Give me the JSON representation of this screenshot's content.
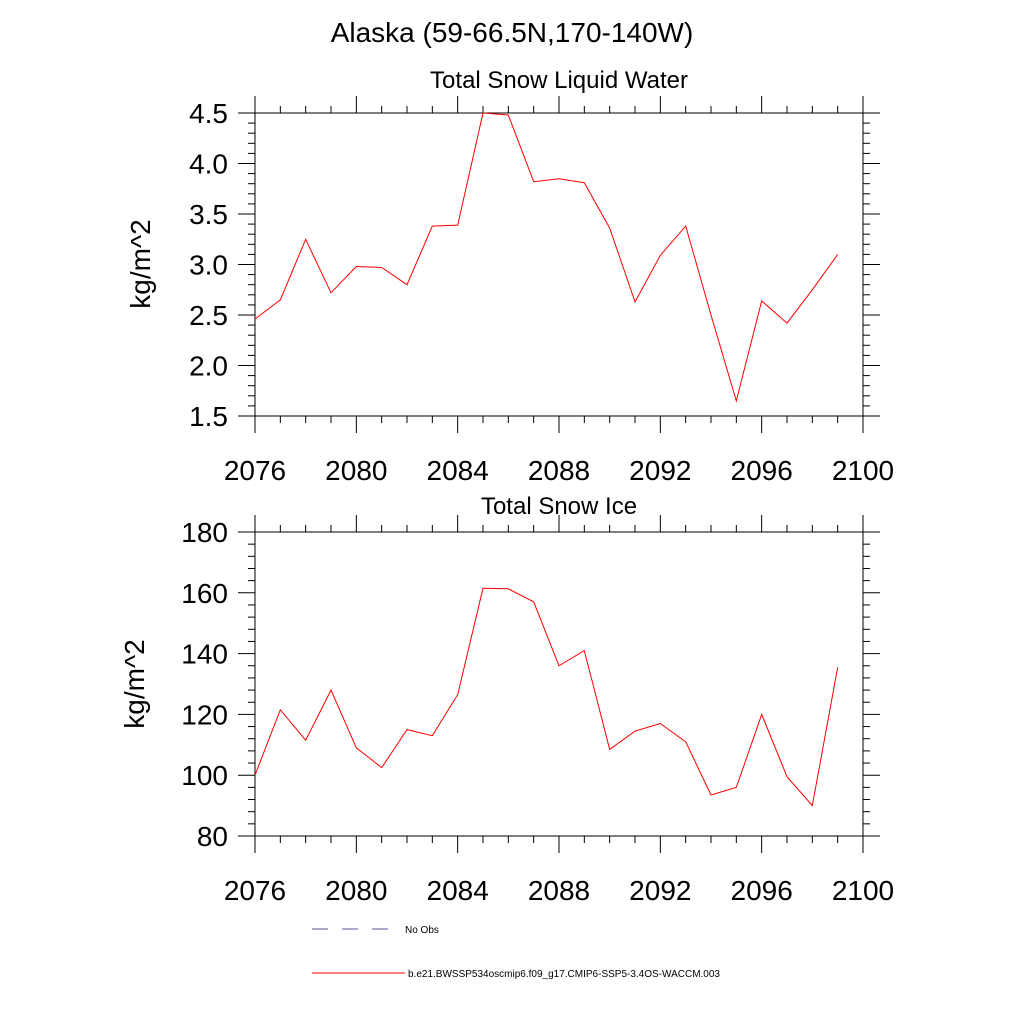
{
  "figure_title": "Alaska (59-66.5N,170-140W)",
  "colors": {
    "model_line": "#ff0000",
    "obs_line": "#5a5aa0",
    "axis": "#000000"
  },
  "legend": {
    "obs_label": "No Obs",
    "model_label": "b.e21.BWSSP534oscmip6.f09_g17.CMIP6-SSP5-3.4OS-WACCM.003"
  },
  "chart_data": [
    {
      "type": "line",
      "title": "Total Snow Liquid Water",
      "xlabel": "",
      "ylabel": "kg/m^2",
      "xlim": [
        2076,
        2100
      ],
      "ylim": [
        1.5,
        4.5
      ],
      "x_ticks": [
        "2076",
        "2080",
        "2084",
        "2088",
        "2092",
        "2096",
        "2100"
      ],
      "y_ticks": [
        "1.5",
        "2.0",
        "2.5",
        "3.0",
        "3.5",
        "4.0",
        "4.5"
      ],
      "grid": false,
      "series": [
        {
          "x": [
            2076,
            2077,
            2078,
            2079,
            2080,
            2081,
            2082,
            2083,
            2084,
            2085,
            2086,
            2087,
            2088,
            2089,
            2090,
            2091,
            2092,
            2093,
            2094,
            2095,
            2096,
            2097,
            2098,
            2099
          ],
          "values": [
            2.46,
            2.65,
            3.25,
            2.72,
            2.98,
            2.97,
            2.8,
            3.38,
            3.39,
            4.5,
            4.48,
            3.82,
            3.85,
            3.81,
            3.36,
            2.63,
            3.09,
            3.38,
            2.5,
            1.65,
            2.64,
            2.42,
            2.75,
            3.1
          ]
        }
      ]
    },
    {
      "type": "line",
      "title": "Total Snow Ice",
      "xlabel": "",
      "ylabel": "kg/m^2",
      "xlim": [
        2076,
        2100
      ],
      "ylim": [
        80,
        180
      ],
      "x_ticks": [
        "2076",
        "2080",
        "2084",
        "2088",
        "2092",
        "2096",
        "2100"
      ],
      "y_ticks": [
        "80",
        "100",
        "120",
        "140",
        "160",
        "180"
      ],
      "grid": false,
      "series": [
        {
          "x": [
            2076,
            2077,
            2078,
            2079,
            2080,
            2081,
            2082,
            2083,
            2084,
            2085,
            2086,
            2087,
            2088,
            2089,
            2090,
            2091,
            2092,
            2093,
            2094,
            2095,
            2096,
            2097,
            2098,
            2099
          ],
          "values": [
            100.0,
            121.5,
            111.5,
            128.0,
            109.0,
            102.5,
            115.0,
            113.0,
            126.5,
            161.5,
            161.3,
            157.0,
            136.0,
            141.0,
            108.5,
            114.5,
            117.0,
            111.0,
            93.5,
            96.0,
            120.0,
            99.5,
            90.0,
            135.5
          ]
        }
      ]
    }
  ]
}
